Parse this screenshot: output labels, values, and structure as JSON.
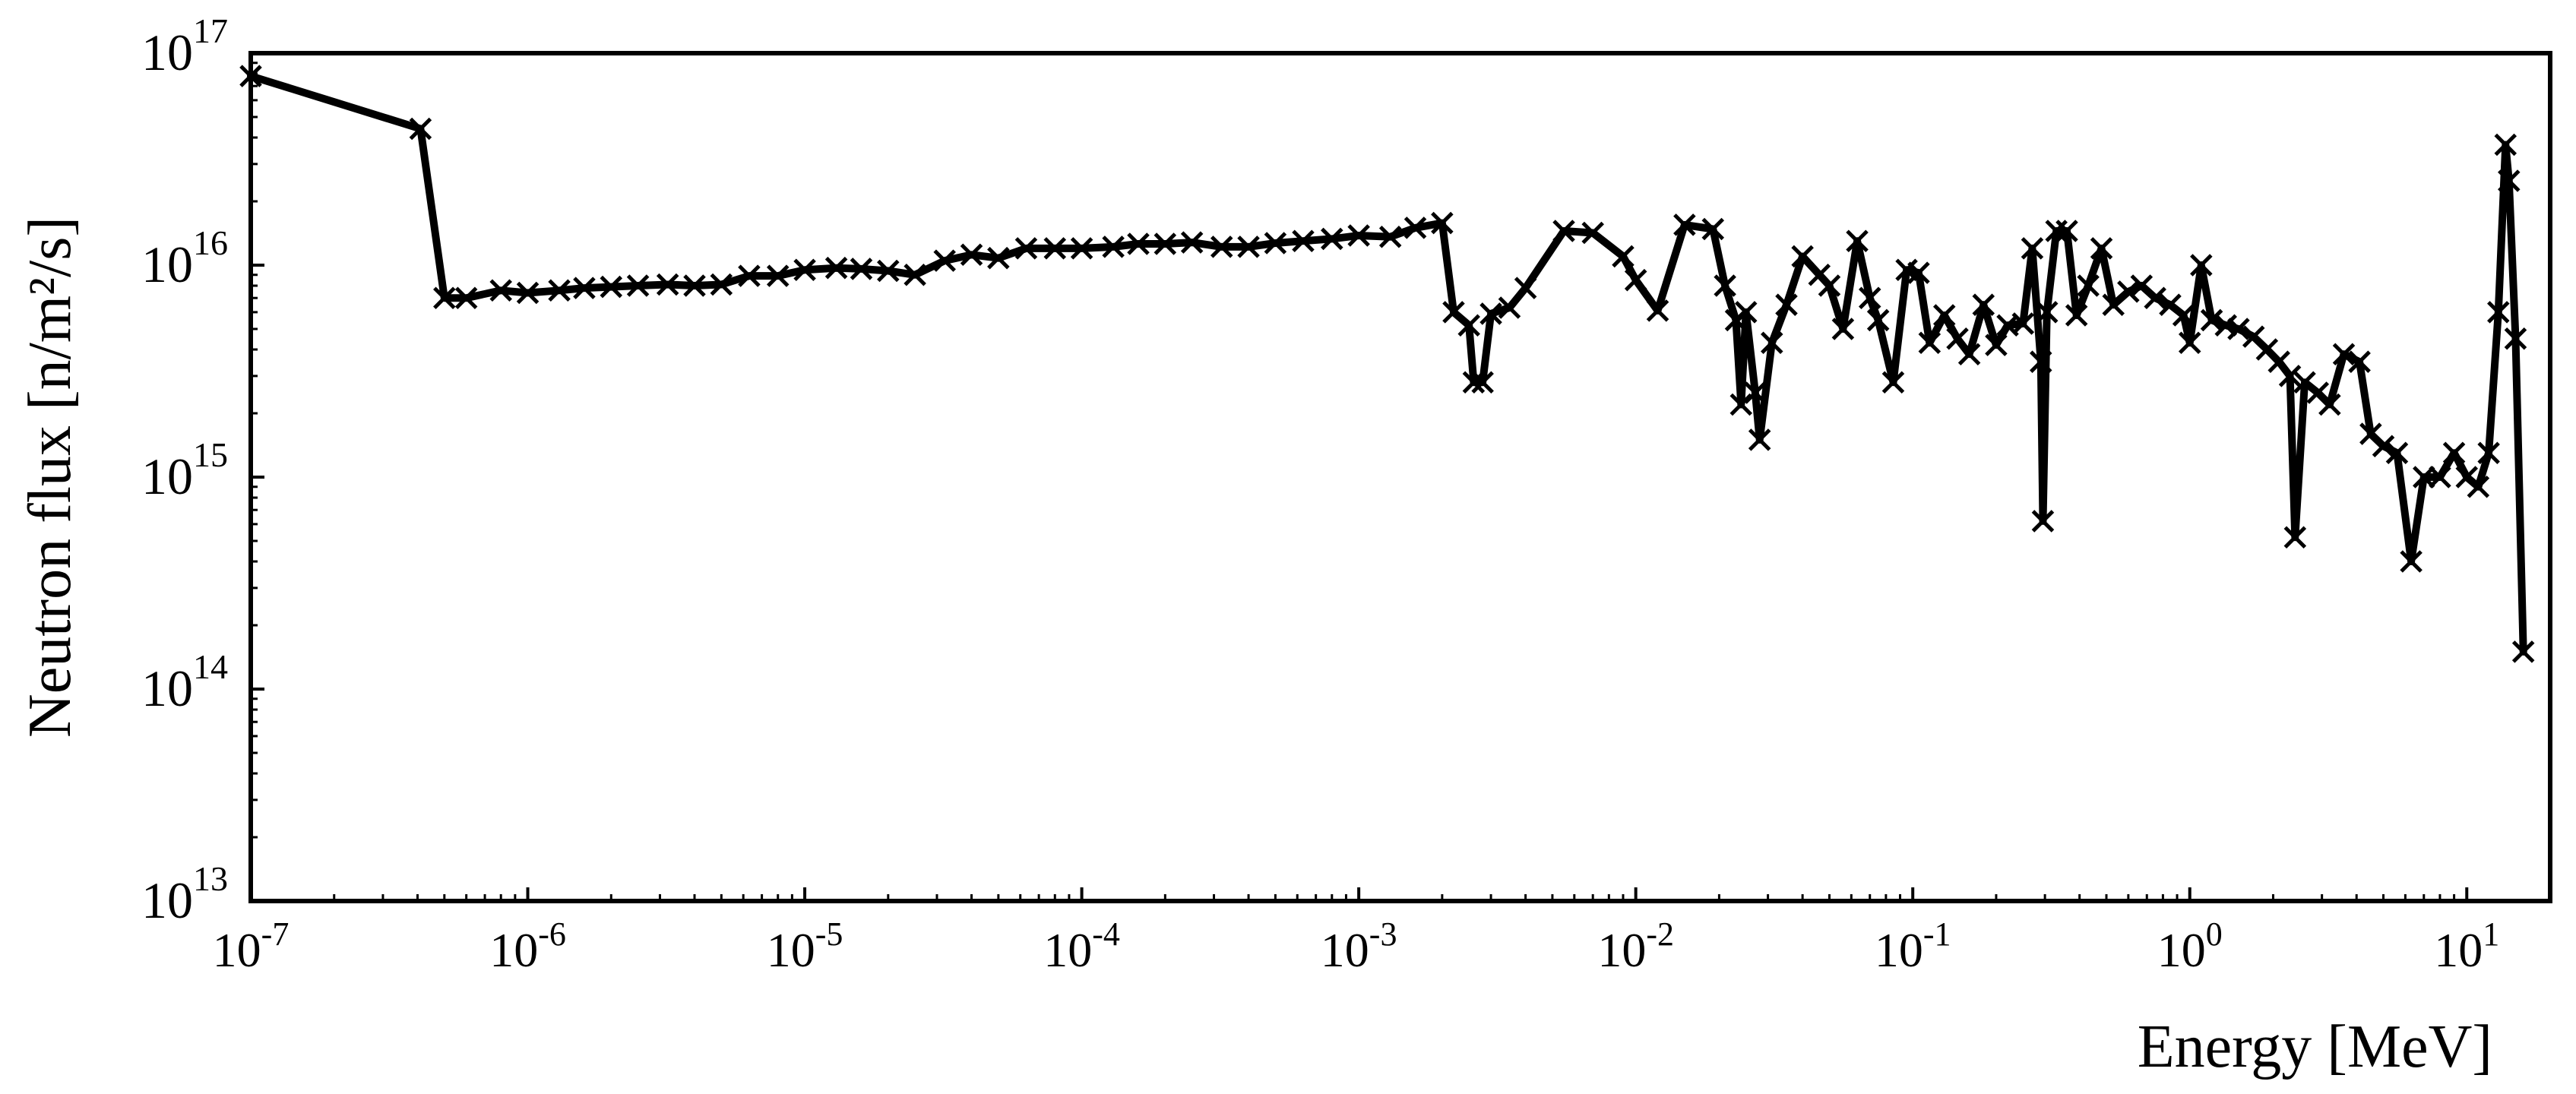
{
  "chart_data": {
    "type": "line",
    "title": "",
    "xlabel": "Energy [MeV]",
    "ylabel": "Neutron flux [n/m²/s]",
    "xscale": "log",
    "yscale": "log",
    "xlim": [
      1e-07,
      20
    ],
    "ylim": [
      10000000000000.0,
      1e+17
    ],
    "grid": false,
    "legend": "none",
    "marker": "x",
    "line_color": "#000000",
    "x_ticks": [
      {
        "value": 1e-07,
        "base": "10",
        "exp": "-7"
      },
      {
        "value": 1e-06,
        "base": "10",
        "exp": "-6"
      },
      {
        "value": 1e-05,
        "base": "10",
        "exp": "-5"
      },
      {
        "value": 0.0001,
        "base": "10",
        "exp": "-4"
      },
      {
        "value": 0.001,
        "base": "10",
        "exp": "-3"
      },
      {
        "value": 0.01,
        "base": "10",
        "exp": "-2"
      },
      {
        "value": 0.1,
        "base": "10",
        "exp": "-1"
      },
      {
        "value": 1.0,
        "base": "10",
        "exp": "0"
      },
      {
        "value": 10.0,
        "base": "10",
        "exp": "1"
      }
    ],
    "y_ticks": [
      {
        "value": 10000000000000.0,
        "base": "10",
        "exp": "13"
      },
      {
        "value": 100000000000000.0,
        "base": "10",
        "exp": "14"
      },
      {
        "value": 1000000000000000.0,
        "base": "10",
        "exp": "15"
      },
      {
        "value": 1e+16,
        "base": "10",
        "exp": "16"
      },
      {
        "value": 1e+17,
        "base": "10",
        "exp": "17"
      }
    ],
    "series": [
      {
        "points": [
          [
            1e-07,
            7.8e+16
          ],
          [
            4.1e-07,
            4.4e+16
          ],
          [
            5e-07,
            7000000000000000.0
          ],
          [
            6e-07,
            7000000000000000.0
          ],
          [
            8e-07,
            7600000000000000.0
          ],
          [
            1e-06,
            7400000000000000.0
          ],
          [
            1.3e-06,
            7600000000000000.0
          ],
          [
            1.6e-06,
            7800000000000000.0
          ],
          [
            2e-06,
            7900000000000000.0
          ],
          [
            2.5e-06,
            8000000000000000.0
          ],
          [
            3.2e-06,
            8100000000000000.0
          ],
          [
            4e-06,
            8000000000000000.0
          ],
          [
            5e-06,
            8100000000000000.0
          ],
          [
            6.3e-06,
            8900000000000000.0
          ],
          [
            8e-06,
            8900000000000000.0
          ],
          [
            1e-05,
            9500000000000000.0
          ],
          [
            1.3e-05,
            9700000000000000.0
          ],
          [
            1.6e-05,
            9600000000000000.0
          ],
          [
            2e-05,
            9400000000000000.0
          ],
          [
            2.5e-05,
            9000000000000000.0
          ],
          [
            3.2e-05,
            1.05e+16
          ],
          [
            4e-05,
            1.12e+16
          ],
          [
            5e-05,
            1.08e+16
          ],
          [
            6.3e-05,
            1.2e+16
          ],
          [
            8e-05,
            1.2e+16
          ],
          [
            0.0001,
            1.2e+16
          ],
          [
            0.00013,
            1.22e+16
          ],
          [
            0.00016,
            1.26e+16
          ],
          [
            0.0002,
            1.26e+16
          ],
          [
            0.00025,
            1.28e+16
          ],
          [
            0.00032,
            1.22e+16
          ],
          [
            0.0004,
            1.22e+16
          ],
          [
            0.0005,
            1.27e+16
          ],
          [
            0.00063,
            1.3e+16
          ],
          [
            0.0008,
            1.33e+16
          ],
          [
            0.001,
            1.38e+16
          ],
          [
            0.0013,
            1.36e+16
          ],
          [
            0.0016,
            1.5e+16
          ],
          [
            0.002,
            1.58e+16
          ],
          [
            0.0022,
            6000000000000000.0
          ],
          [
            0.0025,
            5200000000000000.0
          ],
          [
            0.0026,
            2800000000000000.0
          ],
          [
            0.0028,
            2800000000000000.0
          ],
          [
            0.003,
            5900000000000000.0
          ],
          [
            0.0035,
            6300000000000000.0
          ],
          [
            0.004,
            7800000000000000.0
          ],
          [
            0.0055,
            1.45e+16
          ],
          [
            0.007,
            1.42e+16
          ],
          [
            0.009,
            1.1e+16
          ],
          [
            0.01,
            8500000000000000.0
          ],
          [
            0.012,
            6100000000000000.0
          ],
          [
            0.015,
            1.55e+16
          ],
          [
            0.019,
            1.48e+16
          ],
          [
            0.021,
            8000000000000000.0
          ],
          [
            0.023,
            5500000000000000.0
          ],
          [
            0.024,
            2200000000000000.0
          ],
          [
            0.025,
            6000000000000000.0
          ],
          [
            0.027,
            2500000000000000.0
          ],
          [
            0.028,
            1500000000000000.0
          ],
          [
            0.031,
            4300000000000000.0
          ],
          [
            0.035,
            6500000000000000.0
          ],
          [
            0.04,
            1.1e+16
          ],
          [
            0.046,
            9000000000000000.0
          ],
          [
            0.05,
            8000000000000000.0
          ],
          [
            0.056,
            5000000000000000.0
          ],
          [
            0.063,
            1.3e+16
          ],
          [
            0.07,
            7000000000000000.0
          ],
          [
            0.075,
            5500000000000000.0
          ],
          [
            0.085,
            2800000000000000.0
          ],
          [
            0.095,
            9500000000000000.0
          ],
          [
            0.105,
            9200000000000000.0
          ],
          [
            0.115,
            4300000000000000.0
          ],
          [
            0.13,
            5800000000000000.0
          ],
          [
            0.145,
            4500000000000000.0
          ],
          [
            0.16,
            3800000000000000.0
          ],
          [
            0.18,
            6500000000000000.0
          ],
          [
            0.2,
            4200000000000000.0
          ],
          [
            0.22,
            5200000000000000.0
          ],
          [
            0.25,
            5300000000000000.0
          ],
          [
            0.27,
            1.2e+16
          ],
          [
            0.29,
            3500000000000000.0
          ],
          [
            0.295,
            620000000000000.0
          ],
          [
            0.305,
            6000000000000000.0
          ],
          [
            0.33,
            1.45e+16
          ],
          [
            0.36,
            1.45e+16
          ],
          [
            0.39,
            5800000000000000.0
          ],
          [
            0.43,
            8000000000000000.0
          ],
          [
            0.48,
            1.2e+16
          ],
          [
            0.53,
            6500000000000000.0
          ],
          [
            0.6,
            7500000000000000.0
          ],
          [
            0.67,
            8000000000000000.0
          ],
          [
            0.75,
            7000000000000000.0
          ],
          [
            0.85,
            6500000000000000.0
          ],
          [
            0.95,
            5800000000000000.0
          ],
          [
            1.0,
            4300000000000000.0
          ],
          [
            1.1,
            1e+16
          ],
          [
            1.2,
            5500000000000000.0
          ],
          [
            1.35,
            5200000000000000.0
          ],
          [
            1.5,
            5000000000000000.0
          ],
          [
            1.7,
            4600000000000000.0
          ],
          [
            1.9,
            4000000000000000.0
          ],
          [
            2.1,
            3500000000000000.0
          ],
          [
            2.3,
            3000000000000000.0
          ],
          [
            2.4,
            520000000000000.0
          ],
          [
            2.6,
            2800000000000000.0
          ],
          [
            2.9,
            2500000000000000.0
          ],
          [
            3.2,
            2200000000000000.0
          ],
          [
            3.6,
            3800000000000000.0
          ],
          [
            4.1,
            3500000000000000.0
          ],
          [
            4.5,
            1600000000000000.0
          ],
          [
            5.0,
            1400000000000000.0
          ],
          [
            5.6,
            1300000000000000.0
          ],
          [
            6.3,
            400000000000000.0
          ],
          [
            7.0,
            1000000000000000.0
          ],
          [
            8.0,
            1000000000000000.0
          ],
          [
            9.0,
            1300000000000000.0
          ],
          [
            10.0,
            1000000000000000.0
          ],
          [
            11.0,
            900000000000000.0
          ],
          [
            12.0,
            1300000000000000.0
          ],
          [
            13.0,
            6000000000000000.0
          ],
          [
            13.8,
            3.7e+16
          ],
          [
            14.2,
            2.5e+16
          ],
          [
            15.0,
            4500000000000000.0
          ],
          [
            16.0,
            150000000000000.0
          ]
        ]
      }
    ]
  }
}
